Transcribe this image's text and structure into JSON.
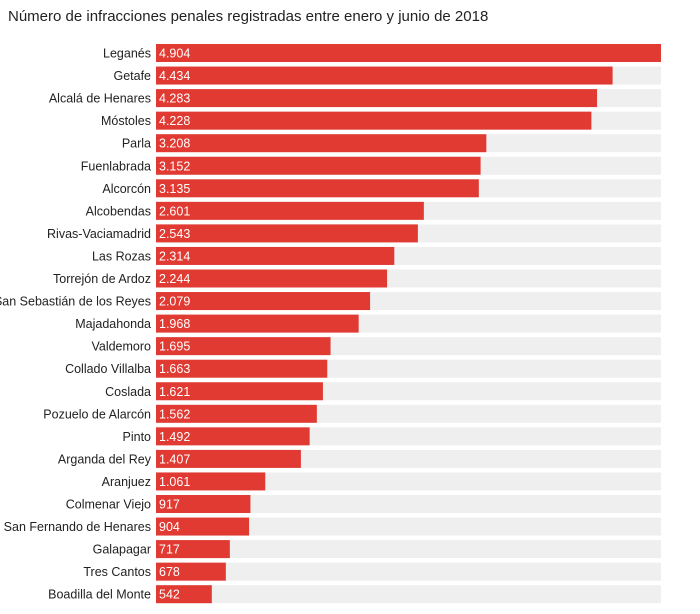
{
  "chart_data": {
    "type": "bar",
    "orientation": "horizontal",
    "title": "Número de infracciones penales registradas entre enero y junio de 2018",
    "categories": [
      "Leganés",
      "Getafe",
      "Alcalá de Henares",
      "Móstoles",
      "Parla",
      "Fuenlabrada",
      "Alcorcón",
      "Alcobendas",
      "Rivas-Vaciamadrid",
      "Las Rozas",
      "Torrejón de Ardoz",
      "San Sebastián de los Reyes",
      "Majadahonda",
      "Valdemoro",
      "Collado Villalba",
      "Coslada",
      "Pozuelo de Alarcón",
      "Pinto",
      "Arganda del Rey",
      "Aranjuez",
      "Colmenar Viejo",
      "San Fernando de Henares",
      "Galapagar",
      "Tres Cantos",
      "Boadilla del Monte"
    ],
    "values": [
      4904,
      4434,
      4283,
      4228,
      3208,
      3152,
      3135,
      2601,
      2543,
      2314,
      2244,
      2079,
      1968,
      1695,
      1663,
      1621,
      1562,
      1492,
      1407,
      1061,
      917,
      904,
      717,
      678,
      542
    ],
    "value_labels": [
      "4.904",
      "4.434",
      "4.283",
      "4.228",
      "3.208",
      "3.152",
      "3.135",
      "2.601",
      "2.543",
      "2.314",
      "2.244",
      "2.079",
      "1.968",
      "1.695",
      "1.663",
      "1.621",
      "1.562",
      "1.492",
      "1.407",
      "1.061",
      "917",
      "904",
      "717",
      "678",
      "542"
    ],
    "xlim": [
      0,
      4904
    ],
    "grid": false,
    "legend": "none",
    "bar_color": "#e03a32",
    "track_color": "#efefef",
    "label_color": "#ffffff"
  }
}
